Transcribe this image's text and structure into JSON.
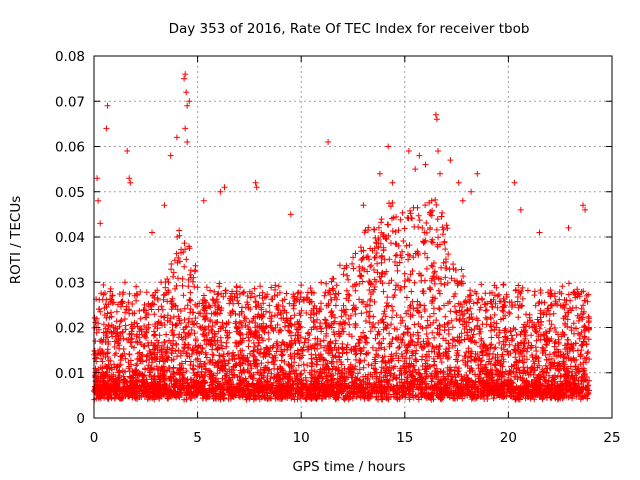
{
  "chart_data": {
    "type": "scatter",
    "title": "Day 353 of 2016, Rate Of TEC Index for receiver tbob",
    "xlabel": "GPS time / hours",
    "ylabel": "ROTI / TECUs",
    "xlim": [
      0,
      25
    ],
    "ylim": [
      0,
      0.08
    ],
    "x_ticks": [
      0,
      5,
      10,
      15,
      20,
      25
    ],
    "x_tick_labels": [
      "0",
      "5",
      "10",
      "15",
      "20",
      "25"
    ],
    "y_ticks": [
      0,
      0.01,
      0.02,
      0.03,
      0.04,
      0.05,
      0.06,
      0.07,
      0.08
    ],
    "y_tick_labels": [
      "0",
      "0.01",
      "0.02",
      "0.03",
      "0.04",
      "0.05",
      "0.06",
      "0.07",
      "0.08"
    ],
    "grid": true,
    "marker": "+",
    "color": "#ff0000",
    "x_data_range": [
      0,
      23.9
    ],
    "typical_range": [
      0.004,
      0.03
    ],
    "points": [
      [
        0.15,
        0.053
      ],
      [
        0.2,
        0.048
      ],
      [
        0.3,
        0.043
      ],
      [
        0.65,
        0.069
      ],
      [
        0.6,
        0.064
      ],
      [
        1.6,
        0.059
      ],
      [
        1.7,
        0.053
      ],
      [
        1.75,
        0.052
      ],
      [
        3.4,
        0.047
      ],
      [
        3.7,
        0.058
      ],
      [
        4.0,
        0.062
      ],
      [
        4.4,
        0.076
      ],
      [
        4.35,
        0.075
      ],
      [
        4.45,
        0.072
      ],
      [
        4.5,
        0.069
      ],
      [
        4.6,
        0.07
      ],
      [
        4.4,
        0.064
      ],
      [
        4.5,
        0.061
      ],
      [
        5.3,
        0.048
      ],
      [
        6.1,
        0.05
      ],
      [
        6.3,
        0.051
      ],
      [
        7.8,
        0.052
      ],
      [
        7.85,
        0.051
      ],
      [
        11.3,
        0.061
      ],
      [
        13.0,
        0.047
      ],
      [
        13.8,
        0.054
      ],
      [
        14.2,
        0.06
      ],
      [
        14.4,
        0.052
      ],
      [
        15.2,
        0.059
      ],
      [
        15.5,
        0.055
      ],
      [
        15.7,
        0.058
      ],
      [
        16.0,
        0.056
      ],
      [
        16.5,
        0.067
      ],
      [
        16.55,
        0.066
      ],
      [
        16.6,
        0.059
      ],
      [
        16.7,
        0.054
      ],
      [
        16.3,
        0.048
      ],
      [
        17.2,
        0.057
      ],
      [
        17.6,
        0.052
      ],
      [
        17.8,
        0.048
      ],
      [
        18.5,
        0.054
      ],
      [
        18.2,
        0.05
      ],
      [
        20.3,
        0.052
      ],
      [
        20.6,
        0.046
      ],
      [
        23.6,
        0.047
      ],
      [
        23.7,
        0.046
      ],
      [
        21.5,
        0.041
      ],
      [
        22.9,
        0.042
      ],
      [
        9.5,
        0.045
      ],
      [
        2.8,
        0.041
      ]
    ]
  }
}
